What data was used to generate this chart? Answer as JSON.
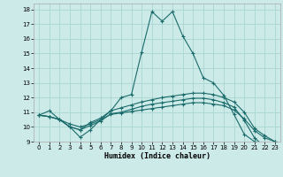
{
  "xlabel": "Humidex (Indice chaleur)",
  "bg_color": "#cceae8",
  "line_color": "#1a6b6b",
  "grid_color": "#aad4d0",
  "xlim": [
    -0.5,
    23.5
  ],
  "ylim": [
    9,
    18.4
  ],
  "xticks": [
    0,
    1,
    2,
    3,
    4,
    5,
    6,
    7,
    8,
    9,
    10,
    11,
    12,
    13,
    14,
    15,
    16,
    17,
    18,
    19,
    20,
    21,
    22,
    23
  ],
  "yticks": [
    9,
    10,
    11,
    12,
    13,
    14,
    15,
    16,
    17,
    18
  ],
  "lines": [
    {
      "x": [
        0,
        1,
        2,
        3,
        4,
        5,
        6,
        7,
        8,
        9,
        10,
        11,
        12,
        13,
        14,
        15,
        16,
        17,
        18,
        19,
        20,
        21,
        22,
        23
      ],
      "y": [
        10.8,
        11.1,
        10.5,
        10.0,
        9.3,
        9.8,
        10.5,
        11.1,
        12.0,
        12.2,
        15.1,
        17.85,
        17.2,
        17.85,
        16.2,
        15.0,
        13.35,
        13.0,
        12.15,
        10.85,
        9.5,
        9.0,
        8.75,
        8.65
      ]
    },
    {
      "x": [
        0,
        1,
        2,
        3,
        4,
        5,
        6,
        7,
        8,
        9,
        10,
        11,
        12,
        13,
        14,
        15,
        16,
        17,
        18,
        19,
        20,
        21,
        22,
        23
      ],
      "y": [
        10.8,
        10.7,
        10.5,
        10.0,
        9.8,
        10.3,
        10.6,
        11.1,
        11.3,
        11.5,
        11.7,
        11.85,
        12.0,
        12.1,
        12.2,
        12.3,
        12.3,
        12.2,
        12.0,
        11.7,
        11.0,
        9.9,
        9.4,
        9.0
      ]
    },
    {
      "x": [
        0,
        1,
        2,
        3,
        4,
        5,
        6,
        7,
        8,
        9,
        10,
        11,
        12,
        13,
        14,
        15,
        16,
        17,
        18,
        19,
        20,
        21,
        22,
        23
      ],
      "y": [
        10.8,
        10.7,
        10.5,
        10.0,
        9.8,
        10.1,
        10.4,
        10.9,
        11.0,
        11.2,
        11.4,
        11.55,
        11.65,
        11.75,
        11.85,
        11.95,
        11.95,
        11.85,
        11.65,
        11.35,
        10.45,
        9.25,
        8.65,
        8.65
      ]
    },
    {
      "x": [
        0,
        1,
        2,
        3,
        4,
        5,
        6,
        7,
        8,
        9,
        10,
        11,
        12,
        13,
        14,
        15,
        16,
        17,
        18,
        19,
        20,
        21,
        22,
        23
      ],
      "y": [
        10.8,
        10.7,
        10.5,
        10.2,
        10.0,
        10.2,
        10.5,
        10.85,
        10.95,
        11.05,
        11.15,
        11.25,
        11.35,
        11.45,
        11.55,
        11.65,
        11.65,
        11.55,
        11.45,
        11.15,
        10.55,
        9.75,
        9.25,
        9.0
      ]
    }
  ]
}
